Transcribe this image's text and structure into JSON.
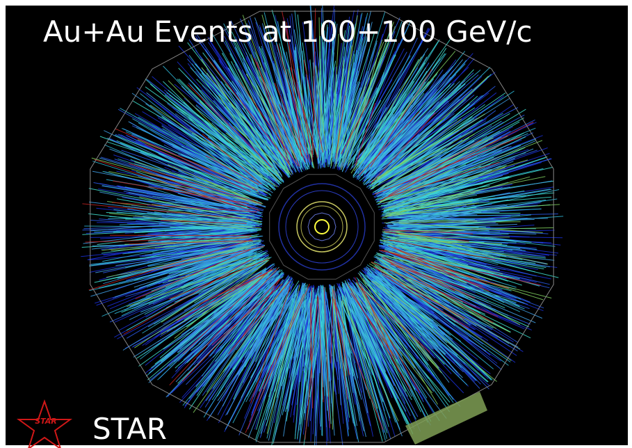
{
  "title": "Au+Au Events at 100+100 GeV/c",
  "logo": {
    "label": "STAR"
  },
  "caption": "STAR"
}
